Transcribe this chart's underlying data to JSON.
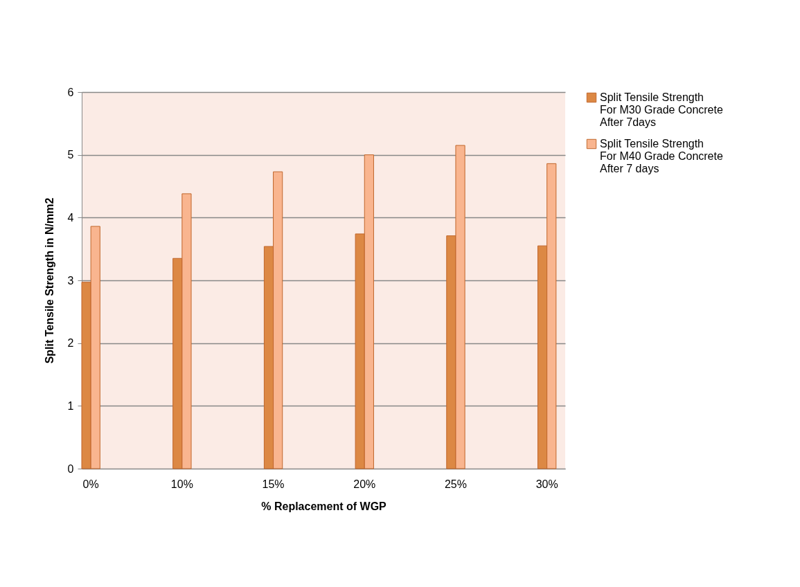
{
  "chart_data": {
    "type": "bar",
    "xlabel": "% Replacement of WGP",
    "ylabel": "Split Tensile Strength in N/mm2",
    "categories": [
      "0%",
      "10%",
      "15%",
      "20%",
      "25%",
      "30%"
    ],
    "series": [
      {
        "name": "Split Tensile Strength For M30 Grade Concrete After 7days",
        "color": "#dc8844",
        "values": [
          2.97,
          3.35,
          3.54,
          3.74,
          3.71,
          3.55
        ]
      },
      {
        "name": "Split Tensile Strength For M40 Grade Concrete After 7 days",
        "color": "#f9b58f",
        "values": [
          3.86,
          4.38,
          4.73,
          5.0,
          5.15,
          4.86
        ]
      }
    ],
    "ylim": [
      0,
      6
    ],
    "yticks": [
      0,
      1,
      2,
      3,
      4,
      5,
      6
    ],
    "grid": "y",
    "legend": "right"
  }
}
